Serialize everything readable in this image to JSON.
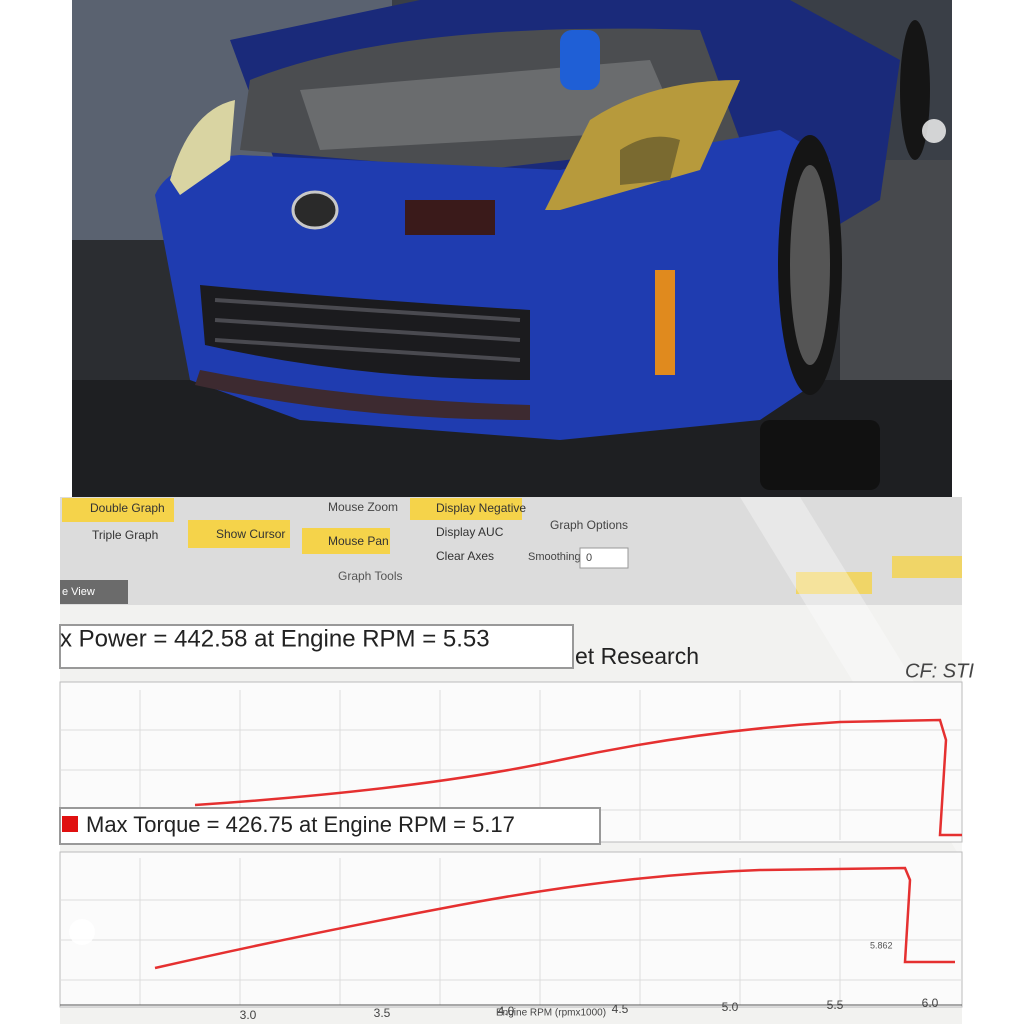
{
  "toolbar": {
    "buttons": [
      "Double Graph",
      "Triple Graph",
      "Show Cursor",
      "Mouse Zoom",
      "Mouse Pan",
      "Display Negative",
      "Display AUC",
      "Clear Axes",
      "Graph Options"
    ],
    "smoothing_label": "Smoothing:",
    "smoothing_value": "0",
    "group_label": "Graph Tools",
    "tab": "e View"
  },
  "readouts": {
    "power": "x Power = 442.58 at Engine RPM = 5.53",
    "power_suffix": "et Research",
    "cf": "CF: STI",
    "torque": "Max Torque = 426.75 at Engine RPM = 5.17"
  },
  "axis": {
    "ticks": [
      "3.0",
      "3.5",
      "4.0",
      "4.5",
      "5.0",
      "5.5",
      "6.0"
    ],
    "label": "Engine RPM (rpmx1000)",
    "marker": "5.862"
  }
}
